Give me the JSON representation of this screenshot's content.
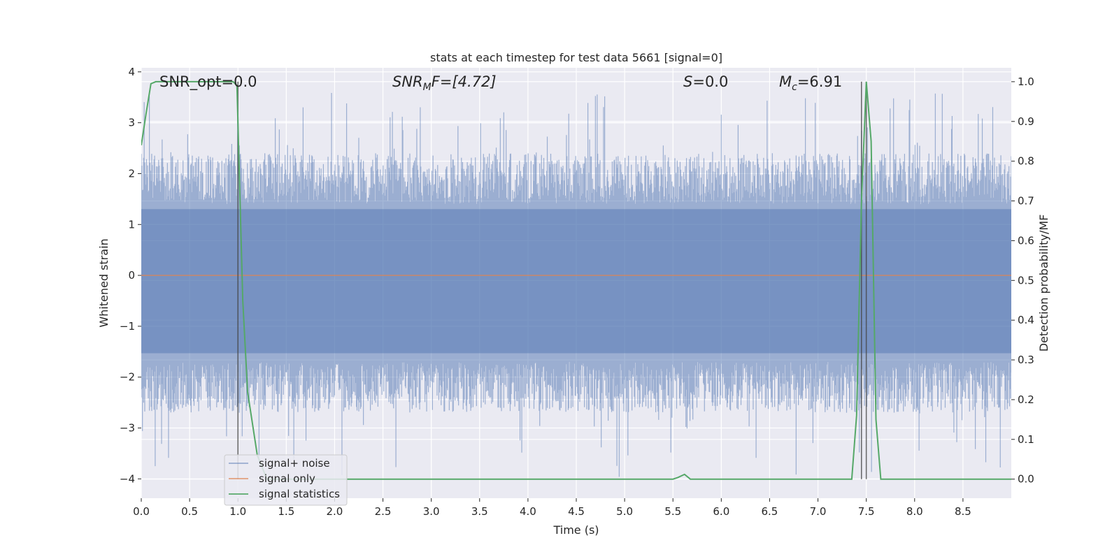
{
  "chart_data": {
    "type": "line",
    "title": "stats at each timestep for test data 5661 [signal=0]",
    "xlabel": "Time (s)",
    "ylabel_left": "Whitened strain",
    "ylabel_right": "Detection probability/MF",
    "xlim": [
      0.0,
      9.0
    ],
    "ylim_left": [
      -4.38,
      4.08
    ],
    "ylim_right": [
      -0.048,
      1.035
    ],
    "xticks": [
      "0.0",
      "0.5",
      "1.0",
      "1.5",
      "2.0",
      "2.5",
      "3.0",
      "3.5",
      "4.0",
      "4.5",
      "5.0",
      "5.5",
      "6.0",
      "6.5",
      "7.0",
      "7.5",
      "8.0",
      "8.5"
    ],
    "yticks_left": [
      "4",
      "3",
      "2",
      "1",
      "0",
      "−1",
      "−2",
      "−3",
      "−4"
    ],
    "yticks_right": [
      "1.0",
      "0.9",
      "0.8",
      "0.7",
      "0.6",
      "0.5",
      "0.4",
      "0.3",
      "0.2",
      "0.1",
      "0.0"
    ],
    "grid": true,
    "legend_placement": "lower-left",
    "annotations": {
      "snr_opt": "SNR_opt=0.0",
      "snr_mf_main": "SNR",
      "snr_mf_sub": "M",
      "snr_mf_tail": "F=[4.72]",
      "s_main": "S",
      "s_tail": "=0.0",
      "mc_main": "M",
      "mc_sub": "c",
      "mc_tail": "=6.91"
    },
    "vertical_lines_x": [
      1.0,
      7.45,
      7.5
    ],
    "series": [
      {
        "name": "signal+ noise",
        "color": "#4c72b0",
        "axis": "left",
        "description_envelope": {
          "typical_min": -1.7,
          "typical_max": 1.4,
          "peak_max": 3.6,
          "peak_min": -4.0
        }
      },
      {
        "name": "signal only",
        "color": "#dd8452",
        "axis": "left",
        "x": [
          0.0,
          9.0
        ],
        "y": [
          0.0,
          0.0
        ]
      },
      {
        "name": "signal statistics",
        "color": "#55a868",
        "axis": "right",
        "x": [
          0.0,
          0.05,
          0.1,
          0.15,
          0.5,
          0.95,
          0.99,
          1.05,
          1.1,
          1.2,
          1.3,
          5.0,
          5.5,
          5.55,
          5.62,
          5.68,
          7.0,
          7.35,
          7.4,
          7.45,
          7.5,
          7.55,
          7.6,
          7.65,
          8.0,
          9.0
        ],
        "y": [
          0.84,
          0.92,
          0.995,
          1.0,
          1.0,
          1.0,
          0.99,
          0.45,
          0.22,
          0.06,
          0.0,
          0.0,
          0.0,
          0.004,
          0.012,
          0.0,
          0.0,
          0.0,
          0.16,
          0.7,
          1.0,
          0.85,
          0.15,
          0.0,
          0.0,
          0.0
        ]
      }
    ]
  }
}
